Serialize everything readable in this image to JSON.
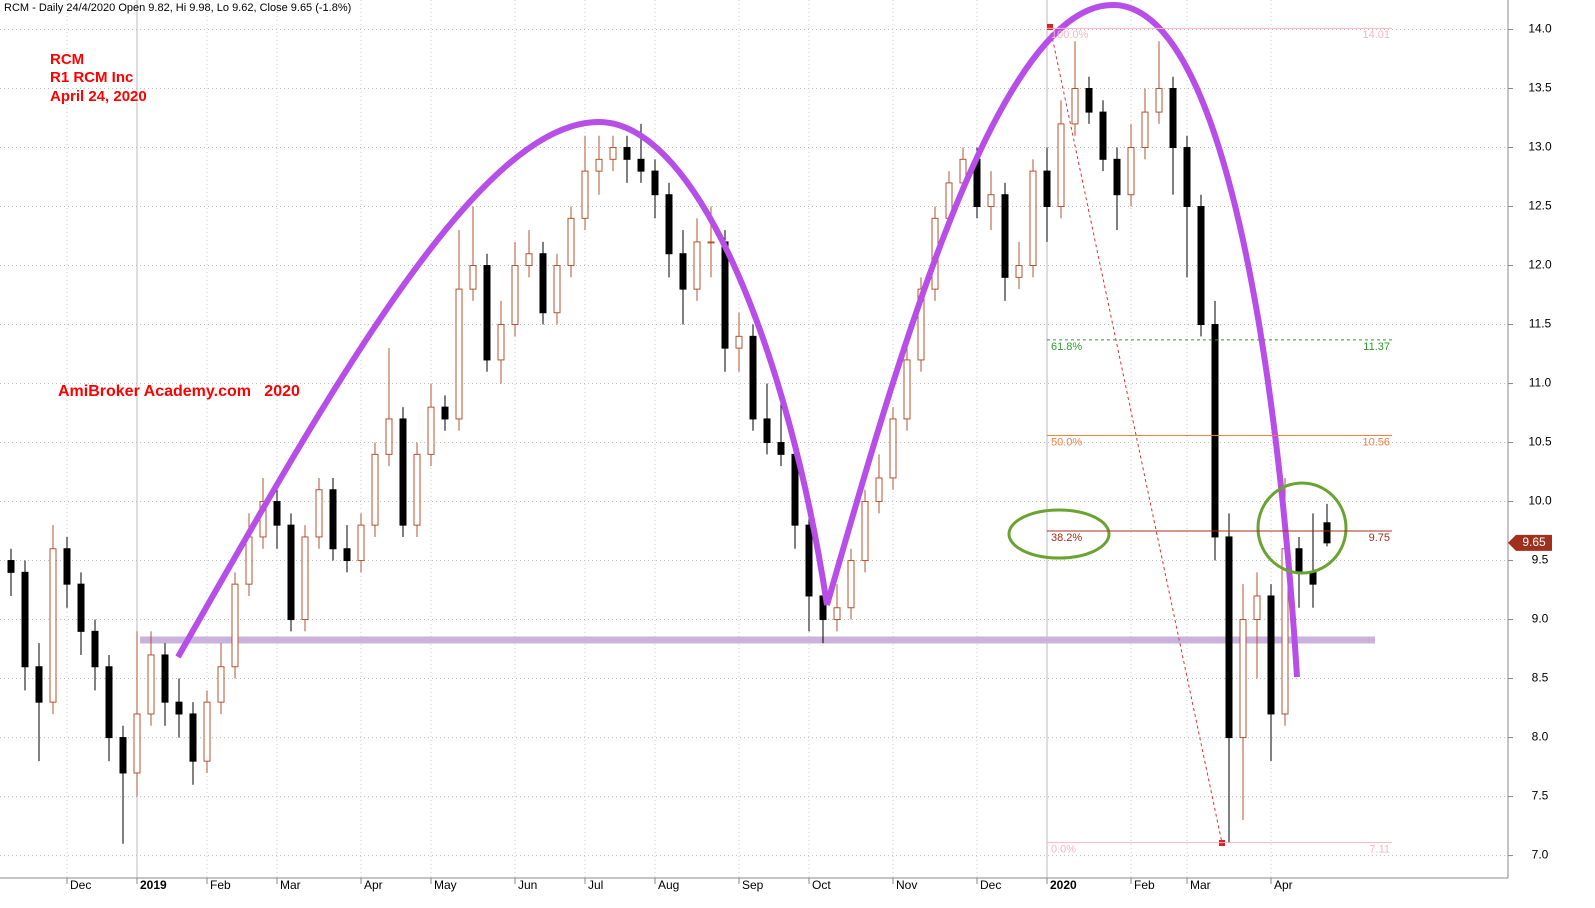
{
  "chart_data": {
    "type": "candlestick",
    "header": "RCM - Daily 24/4/2020 Open 9.82, Hi 9.98, Lo 9.62, Close 9.65 (-1.8%)",
    "annotations": [
      "RCM",
      "R1 RCM Inc",
      "April 24, 2020",
      "AmiBroker Academy.com   2020"
    ],
    "categories": [
      null,
      null,
      null,
      null,
      "Dec",
      null,
      null,
      null,
      null,
      "2019",
      null,
      null,
      null,
      null,
      "Feb",
      null,
      null,
      null,
      null,
      "Mar",
      null,
      null,
      null,
      null,
      null,
      "Apr",
      null,
      null,
      null,
      null,
      "May",
      null,
      null,
      null,
      null,
      null,
      "Jun",
      null,
      null,
      null,
      null,
      "Jul",
      null,
      null,
      null,
      null,
      "Aug",
      null,
      null,
      null,
      null,
      null,
      "Sep",
      null,
      null,
      null,
      null,
      "Oct",
      null,
      null,
      null,
      null,
      null,
      "Nov",
      null,
      null,
      null,
      null,
      null,
      "Dec",
      null,
      null,
      null,
      null,
      "2020",
      null,
      null,
      null,
      null,
      null,
      "Feb",
      null,
      null,
      null,
      "Mar",
      null,
      null,
      null,
      null,
      null,
      "Apr",
      null,
      null,
      null,
      null
    ],
    "open": [
      9.5,
      9.4,
      8.6,
      8.3,
      9.6,
      9.3,
      8.9,
      8.6,
      8.0,
      7.7,
      8.2,
      8.7,
      8.3,
      8.2,
      7.8,
      8.3,
      8.6,
      9.3,
      9.7,
      10.0,
      9.8,
      9.0,
      9.7,
      10.1,
      9.6,
      9.5,
      9.8,
      10.4,
      10.7,
      9.8,
      10.4,
      10.8,
      10.7,
      11.8,
      12.0,
      11.2,
      11.5,
      12.0,
      12.1,
      11.6,
      12.0,
      12.4,
      12.8,
      12.9,
      13.0,
      12.9,
      12.8,
      12.6,
      12.1,
      11.8,
      12.2,
      12.2,
      11.3,
      11.4,
      10.7,
      10.5,
      10.4,
      9.8,
      9.2,
      9.0,
      9.1,
      9.5,
      10.0,
      10.2,
      10.7,
      11.2,
      11.8,
      12.4,
      12.7,
      12.9,
      12.5,
      12.6,
      11.9,
      12.0,
      12.8,
      12.5,
      13.2,
      13.5,
      13.3,
      12.9,
      12.6,
      13.0,
      13.3,
      13.5,
      13.0,
      12.5,
      11.5,
      9.7,
      8.0,
      9.0,
      9.2,
      8.2,
      9.6,
      9.4,
      9.82
    ],
    "high": [
      9.6,
      9.5,
      8.8,
      9.8,
      9.7,
      9.4,
      9.0,
      8.7,
      8.1,
      8.9,
      8.9,
      8.8,
      8.5,
      8.3,
      8.4,
      8.8,
      9.4,
      9.9,
      10.2,
      10.1,
      9.9,
      9.8,
      10.2,
      10.2,
      9.8,
      9.9,
      10.5,
      11.3,
      10.8,
      10.5,
      11.0,
      10.9,
      12.3,
      12.5,
      12.1,
      11.7,
      12.2,
      12.3,
      12.2,
      12.1,
      12.5,
      13.1,
      13.1,
      13.1,
      13.1,
      13.2,
      12.9,
      12.7,
      12.3,
      12.4,
      12.5,
      12.3,
      11.6,
      11.5,
      11.0,
      10.9,
      10.5,
      9.9,
      9.4,
      9.3,
      9.6,
      10.1,
      10.4,
      10.8,
      11.3,
      11.9,
      12.5,
      12.8,
      13.0,
      13.0,
      12.8,
      12.7,
      12.2,
      12.9,
      13.0,
      13.4,
      13.9,
      13.6,
      13.4,
      13.0,
      13.2,
      13.5,
      13.9,
      13.6,
      13.1,
      12.6,
      11.7,
      9.9,
      9.3,
      9.4,
      9.3,
      10.2,
      9.7,
      9.9,
      9.98
    ],
    "low": [
      9.2,
      8.4,
      7.8,
      8.2,
      9.1,
      8.7,
      8.4,
      7.8,
      7.1,
      7.5,
      8.1,
      8.1,
      8.0,
      7.6,
      7.7,
      8.2,
      8.5,
      9.2,
      9.6,
      9.6,
      8.9,
      8.9,
      9.6,
      9.5,
      9.4,
      9.4,
      9.7,
      10.3,
      9.7,
      9.7,
      10.3,
      10.6,
      10.6,
      11.7,
      11.1,
      11.0,
      11.4,
      11.9,
      11.5,
      11.5,
      11.9,
      12.3,
      12.6,
      12.8,
      12.7,
      12.7,
      12.4,
      11.9,
      11.5,
      11.7,
      11.9,
      11.1,
      11.1,
      10.6,
      10.4,
      10.3,
      9.6,
      8.9,
      8.8,
      8.9,
      9.0,
      9.4,
      9.9,
      10.1,
      10.6,
      11.1,
      11.7,
      12.3,
      12.6,
      12.4,
      12.3,
      11.7,
      11.8,
      11.9,
      12.2,
      12.4,
      13.1,
      13.2,
      12.8,
      12.3,
      12.5,
      12.9,
      13.2,
      12.6,
      11.9,
      11.4,
      9.5,
      7.11,
      7.3,
      8.5,
      7.8,
      8.1,
      9.1,
      9.1,
      9.62
    ],
    "close": [
      9.4,
      8.6,
      8.3,
      9.6,
      9.3,
      8.9,
      8.6,
      8.0,
      7.7,
      8.2,
      8.7,
      8.3,
      8.2,
      7.8,
      8.3,
      8.6,
      9.3,
      9.7,
      10.0,
      9.8,
      9.0,
      9.7,
      10.1,
      9.6,
      9.5,
      9.8,
      10.4,
      10.7,
      9.8,
      10.4,
      10.8,
      10.7,
      11.8,
      12.0,
      11.2,
      11.5,
      12.0,
      12.1,
      11.6,
      12.0,
      12.4,
      12.8,
      12.9,
      13.0,
      12.9,
      12.8,
      12.6,
      12.1,
      11.8,
      12.2,
      12.2,
      11.3,
      11.4,
      10.7,
      10.5,
      10.4,
      9.8,
      9.2,
      9.0,
      9.1,
      9.5,
      10.0,
      10.2,
      10.7,
      11.2,
      11.8,
      12.4,
      12.7,
      12.9,
      12.5,
      12.6,
      11.9,
      12.0,
      12.8,
      12.5,
      13.2,
      13.5,
      13.3,
      12.9,
      12.6,
      13.0,
      13.3,
      13.5,
      13.0,
      12.5,
      11.5,
      9.7,
      8.0,
      9.0,
      9.2,
      8.2,
      9.6,
      9.4,
      9.3,
      9.65
    ],
    "up_color": "#b5532f",
    "down_color": "#000000",
    "fib_levels": [
      {
        "label": "100.0%",
        "value": 14.01,
        "color": "#f5b5c5"
      },
      {
        "label": "61.8%",
        "value": 11.37,
        "color": "#2e9b2e",
        "dashed": true
      },
      {
        "label": "50.0%",
        "value": 10.56,
        "color": "#f08040"
      },
      {
        "label": "38.2%",
        "value": 9.75,
        "color": "#a0301c"
      },
      {
        "label": "0.0%",
        "value": 7.11,
        "color": "#f5b5c5"
      }
    ],
    "last_price": 9.65,
    "ylim": [
      6.81,
      14.25
    ],
    "yticks": [
      {
        "value": 7,
        "label": "7.0"
      },
      7.5,
      {
        "value": 8,
        "label": "8.0"
      },
      8.5,
      {
        "value": 9,
        "label": "9.0"
      },
      9.5,
      {
        "value": 10,
        "label": "10.0"
      },
      10.5,
      {
        "value": 11,
        "label": "11.0"
      },
      11.5,
      {
        "value": 12,
        "label": "12.0"
      },
      12.5,
      {
        "value": 13,
        "label": "13.0"
      },
      13.5,
      {
        "value": 14,
        "label": "14.0"
      }
    ],
    "grid": true
  }
}
